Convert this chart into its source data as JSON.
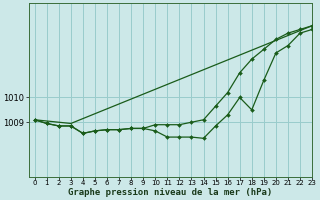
{
  "title": "Graphe pression niveau de la mer (hPa)",
  "background_color": "#cce8e8",
  "grid_color": "#99cccc",
  "line_color": "#1a5c1a",
  "xlim": [
    -0.5,
    23
  ],
  "ylim": [
    1006.8,
    1013.8
  ],
  "yticks": [
    1009,
    1010
  ],
  "xticks": [
    0,
    1,
    2,
    3,
    4,
    5,
    6,
    7,
    8,
    9,
    10,
    11,
    12,
    13,
    14,
    15,
    16,
    17,
    18,
    19,
    20,
    21,
    22,
    23
  ],
  "line1": [
    1009.1,
    1008.95,
    1008.85,
    1008.85,
    1008.55,
    1008.65,
    1008.7,
    1008.7,
    1008.75,
    1008.75,
    1008.65,
    1008.4,
    1008.4,
    1008.4,
    1008.35,
    1008.85,
    1009.3,
    1010.0,
    1009.5,
    1010.7,
    1011.8,
    1012.1,
    1012.6,
    1012.75
  ],
  "line2_x": [
    0,
    1,
    2,
    3,
    4,
    5,
    6,
    7,
    8,
    9,
    10,
    11,
    12,
    13,
    14,
    15,
    16,
    17,
    18,
    19,
    20,
    21,
    22,
    23
  ],
  "line2": [
    1009.1,
    1008.95,
    1008.85,
    1008.85,
    1008.55,
    1008.65,
    1008.7,
    1008.7,
    1008.75,
    1008.75,
    1008.9,
    1008.9,
    1008.9,
    1009.0,
    1009.1,
    1009.65,
    1010.2,
    1011.0,
    1011.55,
    1011.95,
    1012.35,
    1012.6,
    1012.75,
    1012.9
  ],
  "line3_x": [
    0,
    3,
    23
  ],
  "line3_y": [
    1009.1,
    1008.95,
    1012.9
  ],
  "ms": 2.0,
  "lw": 0.9
}
